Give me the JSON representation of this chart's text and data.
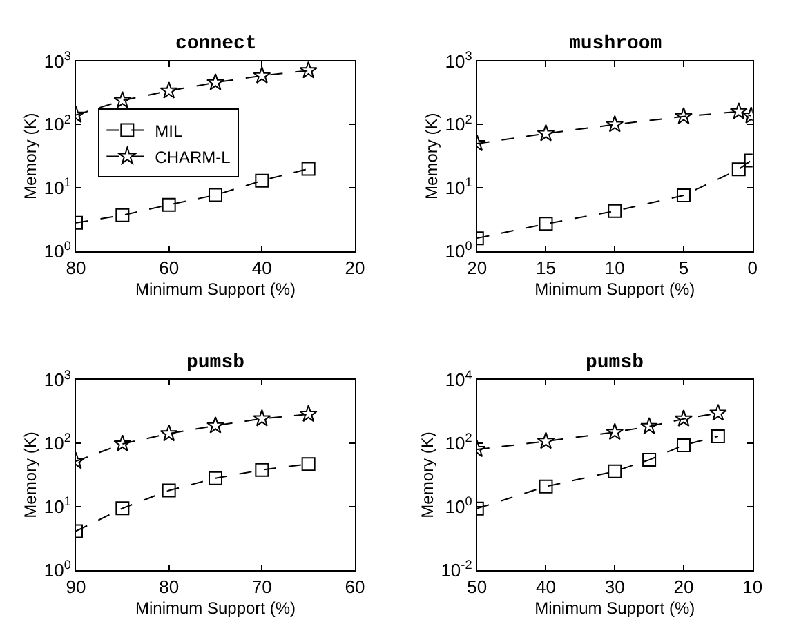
{
  "chart_data": [
    {
      "type": "line",
      "title": "connect",
      "xlabel": "Minimum Support (%)",
      "ylabel": "Memory (K)",
      "log": "y",
      "legend": "top left",
      "line_style": "dashed",
      "xlim": [
        80,
        20
      ],
      "xticks": [
        80,
        60,
        40,
        20
      ],
      "ylim": [
        1,
        1000
      ],
      "yticks": [
        {
          "value": 1,
          "label": "10$^{0}$"
        },
        {
          "value": 10,
          "label": "10$^{1}$"
        },
        {
          "value": 100,
          "label": "10$^{2}$"
        },
        {
          "value": 1000,
          "label": "10$^{3}$"
        }
      ],
      "series": [
        {
          "name": "MIL",
          "color": "#000000",
          "marker": "square",
          "x": [
            80,
            70,
            60,
            50,
            40,
            30
          ],
          "values": [
            2.8,
            3.7,
            5.4,
            7.7,
            13,
            20
          ]
        },
        {
          "name": "CHARM-L",
          "color": "#000000",
          "marker": "star",
          "x": [
            80,
            70,
            60,
            50,
            40,
            30
          ],
          "values": [
            141,
            240,
            340,
            460,
            590,
            710
          ]
        }
      ]
    },
    {
      "type": "line",
      "title": "mushroom",
      "xlabel": "Minimum Support (%)",
      "ylabel": "Memory (K)",
      "log": "y",
      "legend": false,
      "line_style": "dashed",
      "xlim": [
        20,
        0
      ],
      "xticks": [
        20,
        15,
        10,
        5,
        0
      ],
      "ylim": [
        1,
        1000
      ],
      "yticks": [
        {
          "value": 1,
          "label": "10$^{0}$"
        },
        {
          "value": 10,
          "label": "10$^{1}$"
        },
        {
          "value": 100,
          "label": "10$^{2}$"
        },
        {
          "value": 1000,
          "label": "10$^{3}$"
        }
      ],
      "series": [
        {
          "color": "#000000",
          "marker": "square",
          "x": [
            20,
            15,
            10,
            5,
            1,
            0.1
          ],
          "values": [
            1.6,
            2.7,
            4.3,
            7.6,
            19.6,
            27
          ]
        },
        {
          "color": "#000000",
          "marker": "star",
          "x": [
            20,
            15,
            10,
            5,
            1,
            0.1
          ],
          "values": [
            50,
            72,
            100,
            134,
            160,
            137
          ]
        }
      ]
    },
    {
      "type": "line",
      "title": "pumsb",
      "xlabel": "Minimum Support (%)",
      "ylabel": "Memory (K)",
      "log": "y",
      "legend": false,
      "line_style": "dashed",
      "xlim": [
        90,
        60
      ],
      "xticks": [
        90,
        80,
        70,
        60
      ],
      "ylim": [
        1,
        1000
      ],
      "yticks": [
        {
          "value": 1,
          "label": "10$^{0}$"
        },
        {
          "value": 10,
          "label": "10$^{1}$"
        },
        {
          "value": 100,
          "label": "10$^{2}$"
        },
        {
          "value": 1000,
          "label": "10$^{3}$"
        }
      ],
      "series": [
        {
          "color": "#000000",
          "marker": "square",
          "x": [
            90,
            85,
            80,
            75,
            70,
            65
          ],
          "values": [
            4.1,
            9.4,
            18,
            28,
            38,
            47
          ]
        },
        {
          "color": "#000000",
          "marker": "star",
          "x": [
            90,
            85,
            80,
            75,
            70,
            65
          ],
          "values": [
            52,
            98,
            142,
            190,
            245,
            288
          ]
        }
      ]
    },
    {
      "type": "line",
      "title": "pumsb",
      "xlabel": "Minimum Support (%)",
      "ylabel": "Memory (K)",
      "log": "y",
      "legend": false,
      "line_style": "dashed",
      "xlim": [
        50,
        10
      ],
      "xticks": [
        50,
        40,
        30,
        20,
        10
      ],
      "ylim": [
        0.01,
        10000
      ],
      "yticks": [
        {
          "value": 0.01,
          "label": "10$^{-2}$"
        },
        {
          "value": 1,
          "label": "10$^{0}$"
        },
        {
          "value": 100,
          "label": "10$^{2}$"
        },
        {
          "value": 10000,
          "label": "10$^{4}$"
        }
      ],
      "series": [
        {
          "color": "#000000",
          "marker": "square",
          "x": [
            50,
            40,
            30,
            25,
            20,
            15
          ],
          "values": [
            0.87,
            4.3,
            13,
            30,
            87,
            166
          ]
        },
        {
          "color": "#000000",
          "marker": "star",
          "x": [
            50,
            40,
            30,
            25,
            20,
            15
          ],
          "values": [
            64,
            116,
            224,
            340,
            590,
            900
          ]
        }
      ]
    }
  ]
}
